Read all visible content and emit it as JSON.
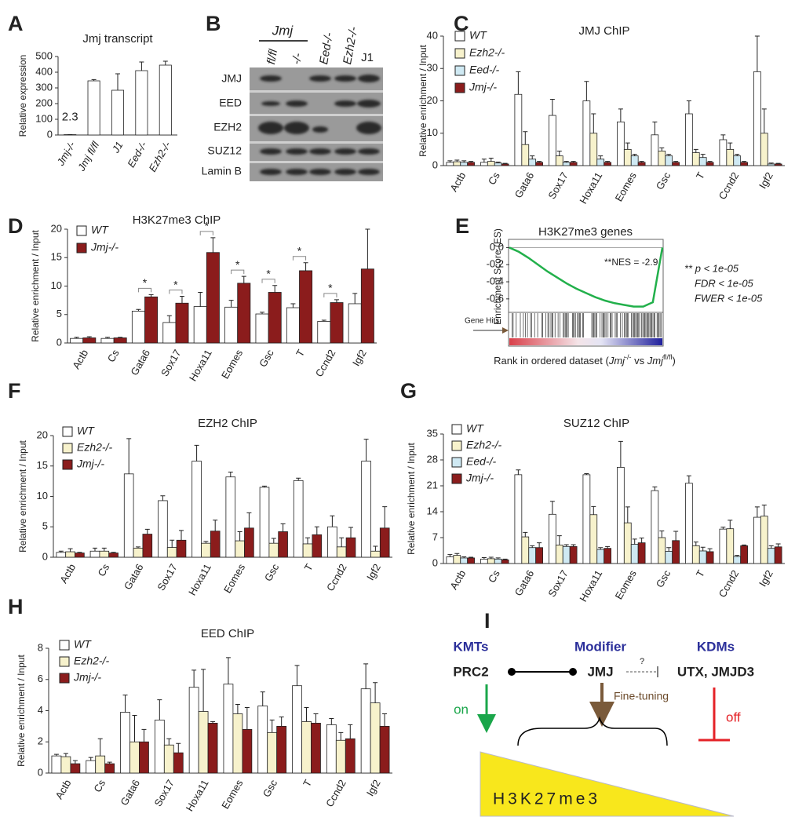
{
  "chart_data": [
    {
      "type": "bar",
      "panel": "A",
      "title": "Jmj transcript",
      "ylabel": "Relative expression",
      "categories": [
        "Jmj-/-",
        "Jmj fl/fl",
        "J1",
        "Eed-/-",
        "Ezh2-/-"
      ],
      "values": [
        2.3,
        345,
        285,
        410,
        445
      ],
      "errors": [
        0,
        8,
        105,
        55,
        25
      ],
      "value_labels": [
        "2.3",
        null,
        null,
        null,
        null
      ],
      "color": "#ffffff",
      "ylim": [
        0,
        500
      ],
      "yticks": [
        0,
        100,
        200,
        300,
        400,
        500
      ]
    },
    {
      "type": "bar",
      "panel": "C",
      "title": "JMJ ChIP",
      "ylabel": "Relative enrichment / Input",
      "categories": [
        "Actb",
        "Cs",
        "Gata6",
        "Sox17",
        "Hoxa11",
        "Eomes",
        "Gsc",
        "T",
        "Ccnd2",
        "Igf2"
      ],
      "series": [
        {
          "name": "WT",
          "color": "#ffffff",
          "values": [
            1,
            1,
            22,
            15.5,
            20,
            13.5,
            9.5,
            16,
            8,
            29
          ],
          "errors": [
            0.5,
            1,
            7,
            5,
            6,
            4,
            4,
            4,
            1.5,
            11
          ]
        },
        {
          "name": "Ezh2-/-",
          "color": "#f7f2cc",
          "values": [
            1.2,
            1.3,
            6.5,
            3,
            10,
            5,
            4.5,
            4,
            5,
            10
          ],
          "errors": [
            0.5,
            1,
            4,
            1.5,
            6,
            2,
            1,
            1,
            2,
            7.5
          ]
        },
        {
          "name": "Eed-/-",
          "color": "#cfe9f3",
          "values": [
            1,
            0.8,
            2,
            1,
            2,
            3,
            3,
            2.5,
            3,
            0.5
          ],
          "errors": [
            0.5,
            0.3,
            1,
            0.3,
            1,
            0.5,
            0.5,
            1,
            0.5,
            0.3
          ]
        },
        {
          "name": "Jmj-/-",
          "color": "#8b1c1c",
          "values": [
            1,
            0.5,
            1,
            1,
            1,
            1,
            1,
            1,
            1,
            0.5
          ],
          "errors": [
            0.3,
            0.2,
            0.3,
            0.3,
            0.3,
            0.3,
            0.3,
            0.3,
            0.3,
            0.2
          ]
        }
      ],
      "ylim": [
        0,
        40
      ],
      "yticks": [
        0,
        10,
        20,
        30,
        40
      ]
    },
    {
      "type": "bar",
      "panel": "D",
      "title": "H3K27me3 ChIP",
      "ylabel": "Relative enrichment / Input",
      "categories": [
        "Actb",
        "Cs",
        "Gata6",
        "Sox17",
        "Hoxa11",
        "Eomes",
        "Gsc",
        "T",
        "Ccnd2",
        "Igf2"
      ],
      "series": [
        {
          "name": "WT",
          "color": "#ffffff",
          "values": [
            0.8,
            0.8,
            5.6,
            3.6,
            6.4,
            6.3,
            5.1,
            6.2,
            3.8,
            6.9
          ],
          "errors": [
            0.2,
            0.2,
            0.3,
            1.2,
            2.5,
            1.2,
            0.3,
            0.7,
            0.2,
            1.8
          ]
        },
        {
          "name": "Jmj-/-",
          "color": "#8b1c1c",
          "values": [
            0.9,
            0.9,
            8.1,
            7,
            15.9,
            10.5,
            8.9,
            12.7,
            7.1,
            13
          ],
          "errors": [
            0.2,
            0.1,
            0.4,
            1.2,
            2.6,
            1.2,
            1.2,
            1.4,
            0.5,
            7
          ]
        }
      ],
      "significance": [
        null,
        null,
        "*",
        "*",
        "*",
        "*",
        "*",
        "*",
        "*",
        null
      ],
      "ylim": [
        0,
        20
      ],
      "yticks": [
        0,
        5,
        10,
        15,
        20
      ]
    },
    {
      "type": "bar",
      "panel": "F",
      "title": "EZH2 ChIP",
      "ylabel": "Relative enrichment / Input",
      "categories": [
        "Actb",
        "Cs",
        "Gata6",
        "Sox17",
        "Hoxa11",
        "Eomes",
        "Gsc",
        "T",
        "Ccnd2",
        "Igf2"
      ],
      "series": [
        {
          "name": "WT",
          "color": "#ffffff",
          "values": [
            0.8,
            1,
            13.7,
            9.3,
            15.8,
            13.2,
            11.5,
            12.6,
            5,
            15.8
          ],
          "errors": [
            0.2,
            0.5,
            5.8,
            0.8,
            2.6,
            0.8,
            0.2,
            0.4,
            1.8,
            3.6
          ]
        },
        {
          "name": "Ezh2-/-",
          "color": "#f7f2cc",
          "values": [
            0.9,
            1,
            1.5,
            1.6,
            2.3,
            2.7,
            2.3,
            2.2,
            1.7,
            1
          ],
          "errors": [
            0.5,
            0.5,
            0.2,
            1.2,
            0.3,
            1.5,
            0.8,
            1,
            1.5,
            0.8
          ]
        },
        {
          "name": "Jmj-/-",
          "color": "#8b1c1c",
          "values": [
            0.7,
            0.7,
            3.8,
            2.8,
            4.3,
            4.8,
            4.2,
            3.7,
            3.2,
            4.8
          ],
          "errors": [
            0.1,
            0.1,
            0.8,
            1.6,
            1.8,
            2.5,
            1.3,
            1.3,
            1.7,
            3.5
          ]
        }
      ],
      "ylim": [
        0,
        20
      ],
      "yticks": [
        0,
        5,
        10,
        15,
        20
      ]
    },
    {
      "type": "bar",
      "panel": "G",
      "title": "SUZ12 ChIP",
      "ylabel": "Relative enrichment / Input",
      "categories": [
        "Actb",
        "Cs",
        "Gata6",
        "Sox17",
        "Hoxa11",
        "Eomes",
        "Gsc",
        "T",
        "Ccnd2",
        "Igf2"
      ],
      "series": [
        {
          "name": "WT",
          "color": "#ffffff",
          "values": [
            1.8,
            1.2,
            24,
            13.3,
            24,
            26,
            19.7,
            21.7,
            9.3,
            12.5
          ],
          "errors": [
            0.6,
            0.4,
            1.3,
            3.5,
            0.3,
            7,
            1,
            2,
            0.5,
            2.8
          ]
        },
        {
          "name": "Ezh2-/-",
          "color": "#f7f2cc",
          "values": [
            2.2,
            1.3,
            7.2,
            5,
            13.2,
            11,
            7,
            4.8,
            9.4,
            12.8
          ],
          "errors": [
            0.5,
            0.4,
            1.2,
            2.5,
            2.2,
            4.3,
            1.8,
            1,
            2.3,
            3
          ]
        },
        {
          "name": "Eed-/-",
          "color": "#cfe9f3",
          "values": [
            1.5,
            1.2,
            4.3,
            4.6,
            3.8,
            5.2,
            3.3,
            3.4,
            1.9,
            4.1
          ],
          "errors": [
            0.3,
            0.3,
            0.5,
            0.5,
            0.5,
            1.4,
            1,
            1,
            0.3,
            0.7
          ]
        },
        {
          "name": "Jmj-/-",
          "color": "#8b1c1c",
          "values": [
            1.5,
            1,
            4.3,
            4.6,
            4.1,
            5.6,
            6.2,
            3.2,
            4.8,
            4.5
          ],
          "errors": [
            0.2,
            0.2,
            1.3,
            0.5,
            0.5,
            1.3,
            2.5,
            0.8,
            0.2,
            0.8
          ]
        }
      ],
      "ylim": [
        0,
        35
      ],
      "yticks": [
        0,
        7,
        14,
        21,
        28,
        35
      ]
    },
    {
      "type": "bar",
      "panel": "H",
      "title": "EED ChIP",
      "ylabel": "Relative enrichment / Input",
      "categories": [
        "Actb",
        "Cs",
        "Gata6",
        "Sox17",
        "Hoxa11",
        "Eomes",
        "Gsc",
        "T",
        "Ccnd2",
        "Igf2"
      ],
      "series": [
        {
          "name": "WT",
          "color": "#ffffff",
          "values": [
            1.1,
            0.8,
            3.9,
            3.4,
            5.5,
            5.7,
            4.3,
            5.6,
            3.1,
            5.4
          ],
          "errors": [
            0.1,
            0.2,
            1.1,
            1.3,
            1.1,
            1.7,
            0.9,
            1.3,
            0.4,
            1.6
          ]
        },
        {
          "name": "Ezh2-/-",
          "color": "#f7f2cc",
          "values": [
            1.05,
            1.1,
            2,
            1.8,
            3.95,
            3.8,
            2.6,
            3.3,
            2.1,
            4.5
          ],
          "errors": [
            0.2,
            1.1,
            1.7,
            0.4,
            2.7,
            0.6,
            0.8,
            0.9,
            0.5,
            1.3
          ]
        },
        {
          "name": "Jmj-/-",
          "color": "#8b1c1c",
          "values": [
            0.6,
            0.6,
            2,
            1.3,
            3.2,
            2.8,
            3,
            3.2,
            2.2,
            3
          ],
          "errors": [
            0.2,
            0.1,
            0.8,
            0.6,
            0.1,
            1.4,
            0.6,
            0.6,
            0.9,
            0.8
          ]
        }
      ],
      "ylim": [
        0,
        8
      ],
      "yticks": [
        0,
        2,
        4,
        6,
        8
      ]
    },
    {
      "type": "line",
      "panel": "E",
      "title": "H3K27me3 genes",
      "ylabel": "Enrichment Score (ES)",
      "values": [
        0,
        -0.05,
        -0.12,
        -0.2,
        -0.28,
        -0.35,
        -0.42,
        -0.48,
        -0.53,
        -0.58,
        -0.62,
        -0.65,
        -0.67,
        -0.69,
        -0.69,
        -0.64,
        0
      ],
      "color": "#22b04b",
      "ylim": [
        -0.73,
        0.05
      ],
      "yticks": [
        {
          "value": 0,
          "label": "0.0"
        },
        -0.2,
        -0.4,
        -0.6
      ],
      "annotation": "**NES = -2.9",
      "gene_hits_label": "Gene Hits",
      "xlabel_parts": [
        "Rank in ordered dataset (",
        "Jmj",
        "-/-",
        " vs ",
        "Jmj",
        "fl/fl",
        ")"
      ],
      "stats": [
        "** p < 1e-05",
        "FDR < 1e-05",
        "FWER < 1e-05"
      ]
    }
  ],
  "blot": {
    "panel": "B",
    "group_label": "Jmj",
    "columns": [
      "fl/fl",
      "-/-",
      "Eed-/-",
      "Ezh2-/-",
      "J1"
    ],
    "rows": [
      "JMJ",
      "EED",
      "EZH2",
      "SUZ12",
      "Lamin B"
    ]
  },
  "model": {
    "panel": "I",
    "kmts": "KMTs",
    "modifier": "Modifier",
    "kdms": "KDMs",
    "prc2": "PRC2",
    "jmj": "JMJ",
    "question": "?",
    "kdm_names": "UTX, JMJD3",
    "on": "on",
    "fine_tuning": "Fine-tuning",
    "off": "off",
    "mark": "H3K27me3"
  }
}
